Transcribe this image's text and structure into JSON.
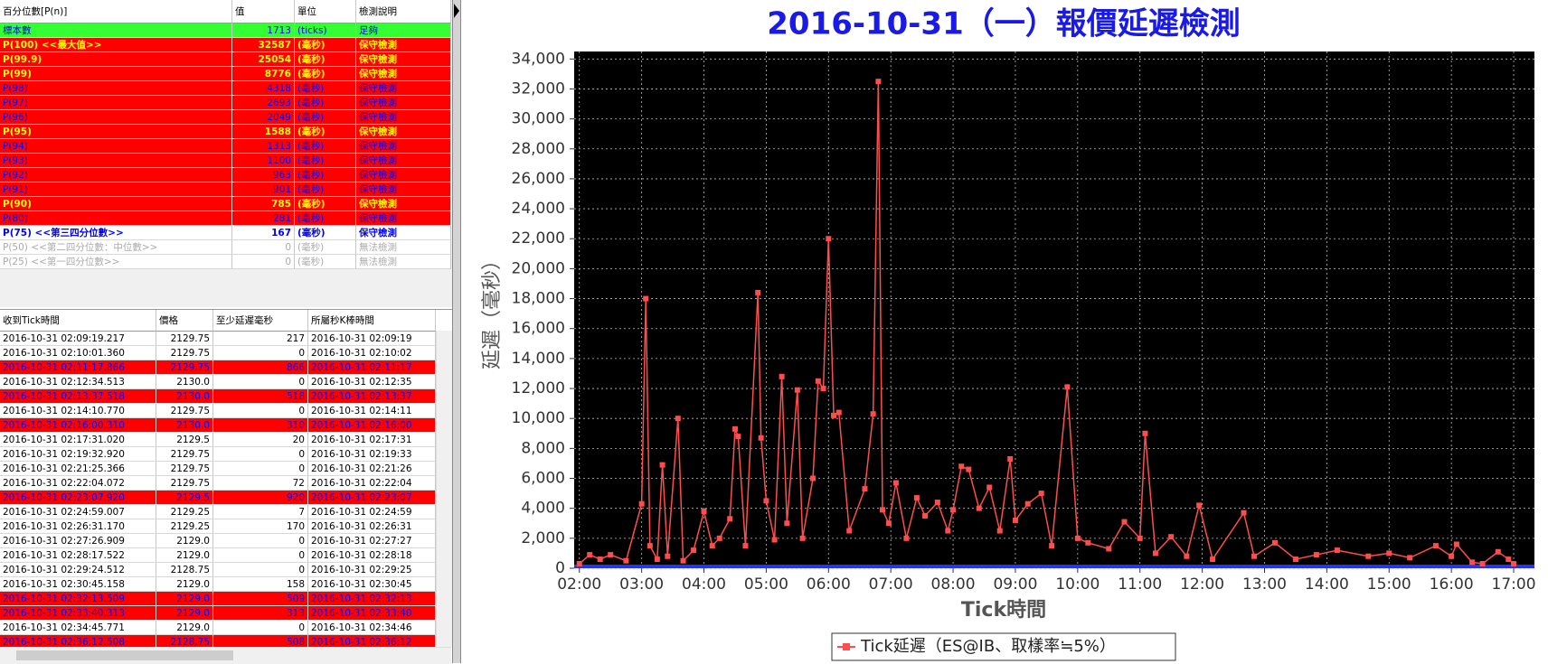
{
  "percentile_table": {
    "headers": [
      "百分位數[P(n)]",
      "值",
      "單位",
      "檢測說明"
    ],
    "rows": [
      {
        "cells": [
          "標本數",
          1713,
          "(ticks)",
          "足夠"
        ],
        "bg": "#33ff33",
        "fg": "#0000ff",
        "bold": false
      },
      {
        "cells": [
          "P(100) <<最大值>>",
          32587,
          "(毫秒)",
          "保守檢測"
        ],
        "bg": "#ff0000",
        "fg": "#ffff00",
        "bold": true
      },
      {
        "cells": [
          "P(99.9)",
          25054,
          "(毫秒)",
          "保守檢測"
        ],
        "bg": "#ff0000",
        "fg": "#ffff00",
        "bold": true
      },
      {
        "cells": [
          "P(99)",
          8776,
          "(毫秒)",
          "保守檢測"
        ],
        "bg": "#ff0000",
        "fg": "#ffff00",
        "bold": true
      },
      {
        "cells": [
          "P(98)",
          4318,
          "(毫秒)",
          "保守檢測"
        ],
        "bg": "#ff0000",
        "fg": "#0000ff",
        "bold": false
      },
      {
        "cells": [
          "P(97)",
          2693,
          "(毫秒)",
          "保守檢測"
        ],
        "bg": "#ff0000",
        "fg": "#0000ff",
        "bold": false
      },
      {
        "cells": [
          "P(96)",
          2049,
          "(毫秒)",
          "保守檢測"
        ],
        "bg": "#ff0000",
        "fg": "#0000ff",
        "bold": false
      },
      {
        "cells": [
          "P(95)",
          1588,
          "(毫秒)",
          "保守檢測"
        ],
        "bg": "#ff0000",
        "fg": "#ffff00",
        "bold": true
      },
      {
        "cells": [
          "P(94)",
          1313,
          "(毫秒)",
          "保守檢測"
        ],
        "bg": "#ff0000",
        "fg": "#0000ff",
        "bold": false
      },
      {
        "cells": [
          "P(93)",
          1100,
          "(毫秒)",
          "保守檢測"
        ],
        "bg": "#ff0000",
        "fg": "#0000ff",
        "bold": false
      },
      {
        "cells": [
          "P(92)",
          963,
          "(毫秒)",
          "保守檢測"
        ],
        "bg": "#ff0000",
        "fg": "#0000ff",
        "bold": false
      },
      {
        "cells": [
          "P(91)",
          901,
          "(毫秒)",
          "保守檢測"
        ],
        "bg": "#ff0000",
        "fg": "#0000ff",
        "bold": false
      },
      {
        "cells": [
          "P(90)",
          785,
          "(毫秒)",
          "保守檢測"
        ],
        "bg": "#ff0000",
        "fg": "#ffff00",
        "bold": true
      },
      {
        "cells": [
          "P(80)",
          281,
          "(毫秒)",
          "保守檢測"
        ],
        "bg": "#ff0000",
        "fg": "#0000ff",
        "bold": false
      },
      {
        "cells": [
          "P(75) <<第三四分位數>>",
          167,
          "(毫秒)",
          "保守檢測"
        ],
        "bg": "#ffffff",
        "fg": "#0000ff",
        "bold": true
      },
      {
        "cells": [
          "P(50) <<第二四分位數：中位數>>",
          0,
          "(毫秒)",
          "無法檢測"
        ],
        "bg": "#ffffff",
        "fg": "#aaaaaa",
        "bold": false
      },
      {
        "cells": [
          "P(25) <<第一四分位數>>",
          0,
          "(毫秒)",
          "無法檢測"
        ],
        "bg": "#ffffff",
        "fg": "#aaaaaa",
        "bold": false
      }
    ]
  },
  "tick_table": {
    "headers": [
      "收到Tick時間",
      "價格",
      "至少延遲毫秒",
      "所屬秒K棒時間"
    ],
    "rows": [
      {
        "cells": [
          "2016-10-31 02:09:19.217",
          "2129.75",
          217,
          "2016-10-31 02:09:19"
        ],
        "bg": "#ffffff",
        "fg": "#000000"
      },
      {
        "cells": [
          "2016-10-31 02:10:01.360",
          "2129.75",
          0,
          "2016-10-31 02:10:02"
        ],
        "bg": "#ffffff",
        "fg": "#000000"
      },
      {
        "cells": [
          "2016-10-31 02:11:17.866",
          "2129.75",
          866,
          "2016-10-31 02:11:17"
        ],
        "bg": "#ff0000",
        "fg": "#0000ff"
      },
      {
        "cells": [
          "2016-10-31 02:12:34.513",
          "2130.0",
          0,
          "2016-10-31 02:12:35"
        ],
        "bg": "#ffffff",
        "fg": "#000000"
      },
      {
        "cells": [
          "2016-10-31 02:13:37.518",
          "2130.0",
          518,
          "2016-10-31 02:13:37"
        ],
        "bg": "#ff0000",
        "fg": "#0000ff"
      },
      {
        "cells": [
          "2016-10-31 02:14:10.770",
          "2129.75",
          0,
          "2016-10-31 02:14:11"
        ],
        "bg": "#ffffff",
        "fg": "#000000"
      },
      {
        "cells": [
          "2016-10-31 02:16:00.310",
          "2130.0",
          310,
          "2016-10-31 02:16:00"
        ],
        "bg": "#ff0000",
        "fg": "#0000ff"
      },
      {
        "cells": [
          "2016-10-31 02:17:31.020",
          "2129.5",
          20,
          "2016-10-31 02:17:31"
        ],
        "bg": "#ffffff",
        "fg": "#000000"
      },
      {
        "cells": [
          "2016-10-31 02:19:32.920",
          "2129.75",
          0,
          "2016-10-31 02:19:33"
        ],
        "bg": "#ffffff",
        "fg": "#000000"
      },
      {
        "cells": [
          "2016-10-31 02:21:25.366",
          "2129.75",
          0,
          "2016-10-31 02:21:26"
        ],
        "bg": "#ffffff",
        "fg": "#000000"
      },
      {
        "cells": [
          "2016-10-31 02:22:04.072",
          "2129.75",
          72,
          "2016-10-31 02:22:04"
        ],
        "bg": "#ffffff",
        "fg": "#000000"
      },
      {
        "cells": [
          "2016-10-31 02:23:07.920",
          "2129.5",
          920,
          "2016-10-31 02:23:07"
        ],
        "bg": "#ff0000",
        "fg": "#0000ff"
      },
      {
        "cells": [
          "2016-10-31 02:24:59.007",
          "2129.25",
          7,
          "2016-10-31 02:24:59"
        ],
        "bg": "#ffffff",
        "fg": "#000000"
      },
      {
        "cells": [
          "2016-10-31 02:26:31.170",
          "2129.25",
          170,
          "2016-10-31 02:26:31"
        ],
        "bg": "#ffffff",
        "fg": "#000000"
      },
      {
        "cells": [
          "2016-10-31 02:27:26.909",
          "2129.0",
          0,
          "2016-10-31 02:27:27"
        ],
        "bg": "#ffffff",
        "fg": "#000000"
      },
      {
        "cells": [
          "2016-10-31 02:28:17.522",
          "2129.0",
          0,
          "2016-10-31 02:28:18"
        ],
        "bg": "#ffffff",
        "fg": "#000000"
      },
      {
        "cells": [
          "2016-10-31 02:29:24.512",
          "2128.75",
          0,
          "2016-10-31 02:29:25"
        ],
        "bg": "#ffffff",
        "fg": "#000000"
      },
      {
        "cells": [
          "2016-10-31 02:30:45.158",
          "2129.0",
          158,
          "2016-10-31 02:30:45"
        ],
        "bg": "#ffffff",
        "fg": "#000000"
      },
      {
        "cells": [
          "2016-10-31 02:32:13.509",
          "2129.0",
          509,
          "2016-10-31 02:32:13"
        ],
        "bg": "#ff0000",
        "fg": "#0000ff"
      },
      {
        "cells": [
          "2016-10-31 02:33:40.313",
          "2129.0",
          313,
          "2016-10-31 02:33:40"
        ],
        "bg": "#ff0000",
        "fg": "#0000ff"
      },
      {
        "cells": [
          "2016-10-31 02:34:45.771",
          "2129.0",
          0,
          "2016-10-31 02:34:46"
        ],
        "bg": "#ffffff",
        "fg": "#000000"
      },
      {
        "cells": [
          "2016-10-31 02:36:12.508",
          "2128.75",
          508,
          "2016-10-31 02:36:12"
        ],
        "bg": "#ff0000",
        "fg": "#0000ff"
      }
    ]
  },
  "chart_data": {
    "type": "line",
    "title": "2016-10-31（一）報價延遲檢測",
    "x_label": "Tick時間",
    "y_label": "延遲（毫秒）",
    "x": [
      "02:00",
      "02:10",
      "02:20",
      "02:30",
      "02:45",
      "03:00",
      "03:04",
      "03:08",
      "03:15",
      "03:20",
      "03:25",
      "03:35",
      "03:40",
      "03:50",
      "04:00",
      "04:08",
      "04:15",
      "04:25",
      "04:30",
      "04:33",
      "04:40",
      "04:52",
      "04:55",
      "05:00",
      "05:08",
      "05:15",
      "05:20",
      "05:30",
      "05:35",
      "05:45",
      "05:50",
      "05:55",
      "06:00",
      "06:05",
      "06:10",
      "06:20",
      "06:35",
      "06:43",
      "06:48",
      "06:52",
      "06:58",
      "07:05",
      "07:15",
      "07:25",
      "07:33",
      "07:45",
      "07:55",
      "08:00",
      "08:08",
      "08:15",
      "08:25",
      "08:35",
      "08:45",
      "08:55",
      "09:00",
      "09:12",
      "09:25",
      "09:35",
      "09:50",
      "10:00",
      "10:10",
      "10:30",
      "10:45",
      "11:00",
      "11:05",
      "11:15",
      "11:30",
      "11:45",
      "11:57",
      "12:10",
      "12:40",
      "12:50",
      "13:10",
      "13:30",
      "13:50",
      "14:10",
      "14:40",
      "15:00",
      "15:20",
      "15:45",
      "16:00",
      "16:05",
      "16:20",
      "16:30",
      "16:45",
      "16:55",
      "17:00"
    ],
    "series": [
      {
        "name": "Tick延遲（ES@IB、取樣率≒5%）",
        "color": "#ff4d4d",
        "values": [
          300,
          900,
          600,
          900,
          500,
          4300,
          18000,
          1500,
          600,
          6900,
          800,
          10000,
          500,
          1200,
          3800,
          1500,
          2000,
          3300,
          9300,
          8800,
          1500,
          18400,
          8700,
          4500,
          1900,
          12800,
          3000,
          11900,
          2000,
          6000,
          12500,
          12000,
          22000,
          10200,
          10400,
          2500,
          5300,
          10300,
          32500,
          3900,
          3000,
          5700,
          2000,
          4700,
          3500,
          4400,
          2500,
          3900,
          6800,
          6600,
          4000,
          5400,
          2500,
          7300,
          3200,
          4300,
          5000,
          1500,
          12100,
          2000,
          1700,
          1300,
          3100,
          2000,
          9000,
          1000,
          2100,
          800,
          4200,
          600,
          3700,
          800,
          1700,
          600,
          900,
          1200,
          800,
          1000,
          700,
          1500,
          800,
          1600,
          400,
          300,
          1100,
          600,
          300
        ]
      }
    ],
    "xlim": [
      "01:55",
      "17:20"
    ],
    "xticks": [
      "02:00",
      "03:00",
      "04:00",
      "05:00",
      "06:00",
      "07:00",
      "08:00",
      "09:00",
      "10:00",
      "11:00",
      "12:00",
      "13:00",
      "14:00",
      "15:00",
      "16:00",
      "17:00"
    ],
    "ylim": [
      0,
      34500
    ],
    "yticks": [
      0,
      {
        "value": 2000,
        "label": "2,000"
      },
      {
        "value": 4000,
        "label": "4,000"
      },
      {
        "value": 6000,
        "label": "6,000"
      },
      {
        "value": 8000,
        "label": "8,000"
      },
      {
        "value": 10000,
        "label": "10,000"
      },
      {
        "value": 12000,
        "label": "12,000"
      },
      {
        "value": 14000,
        "label": "14,000"
      },
      {
        "value": 16000,
        "label": "16,000"
      },
      {
        "value": 18000,
        "label": "18,000"
      },
      {
        "value": 20000,
        "label": "20,000"
      },
      {
        "value": 22000,
        "label": "22,000"
      },
      {
        "value": 24000,
        "label": "24,000"
      },
      {
        "value": 26000,
        "label": "26,000"
      },
      {
        "value": 28000,
        "label": "28,000"
      },
      {
        "value": 30000,
        "label": "30,000"
      },
      {
        "value": 32000,
        "label": "32,000"
      },
      {
        "value": 34000,
        "label": "34,000"
      }
    ],
    "grid": true,
    "legend": "bottom"
  }
}
